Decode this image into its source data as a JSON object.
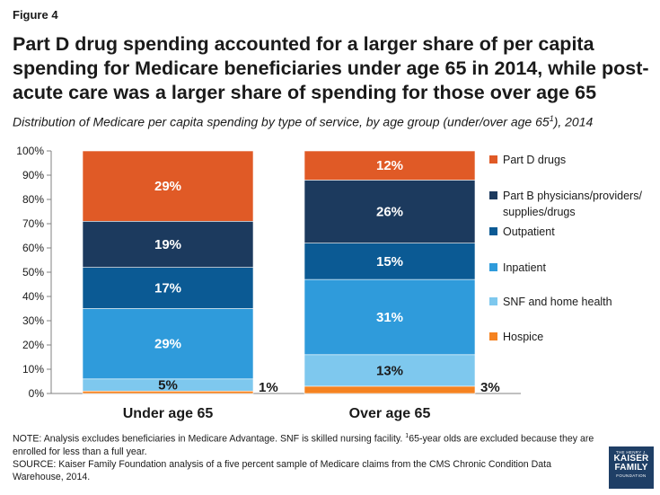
{
  "figure_label": "Figure 4",
  "notes": {
    "note_before_sup": "NOTE: Analysis excludes beneficiaries in Medicare Advantage. SNF is skilled nursing facility. ",
    "note_sup": "1",
    "note_after_sup": "65-year olds are excluded because they are enrolled for less than a full year.",
    "source": "SOURCE: Kaiser Family Foundation analysis of a five percent sample of Medicare claims from the CMS Chronic Condition Data Warehouse, 2014."
  },
  "logo": {
    "line1": "THE HENRY J.",
    "line2": "KAISER",
    "line3": "FAMILY",
    "line4": "FOUNDATION"
  },
  "chart_data": {
    "type": "bar",
    "stacked": true,
    "title": "Part D drug spending accounted for a larger share of per capita spending for Medicare beneficiaries under age 65 in 2014, while post-acute care was a larger share of spending for those over age 65",
    "subtitle_before_sup": "Distribution of Medicare per capita spending by type of service, by age group (under/over age 65",
    "subtitle_sup": "1",
    "subtitle_after_sup": "), 2014",
    "categories": [
      "Under age 65",
      "Over age 65"
    ],
    "ylim": [
      0,
      100
    ],
    "yticks": [
      "0%",
      "10%",
      "20%",
      "30%",
      "40%",
      "50%",
      "60%",
      "70%",
      "80%",
      "90%",
      "100%"
    ],
    "legend_position": "right",
    "series": [
      {
        "name": "Hospice",
        "color": "#f58220",
        "values": [
          1,
          3
        ],
        "labels": [
          "1%",
          "3%"
        ]
      },
      {
        "name": "SNF and home health",
        "color": "#7ec8ee",
        "values": [
          5,
          13
        ],
        "labels": [
          "5%",
          "13%"
        ]
      },
      {
        "name": "Inpatient",
        "color": "#2f9bdb",
        "values": [
          29,
          31
        ],
        "labels": [
          "29%",
          "31%"
        ]
      },
      {
        "name": "Outpatient",
        "color": "#0b5a94",
        "values": [
          17,
          15
        ],
        "labels": [
          "17%",
          "15%"
        ]
      },
      {
        "name": "Part B physicians/providers/ supplies/drugs",
        "color": "#1c3a5e",
        "values": [
          19,
          26
        ],
        "labels": [
          "19%",
          "26%"
        ]
      },
      {
        "name": "Part D drugs",
        "color": "#e05a26",
        "values": [
          29,
          12
        ],
        "labels": [
          "29%",
          "12%"
        ]
      }
    ],
    "legend_lines": [
      [
        "Part D drugs"
      ],
      [
        "Part B physicians/providers/",
        "supplies/drugs"
      ],
      [
        "Outpatient"
      ],
      [
        "Inpatient"
      ],
      [
        "SNF and home health"
      ],
      [
        "Hospice"
      ]
    ]
  }
}
